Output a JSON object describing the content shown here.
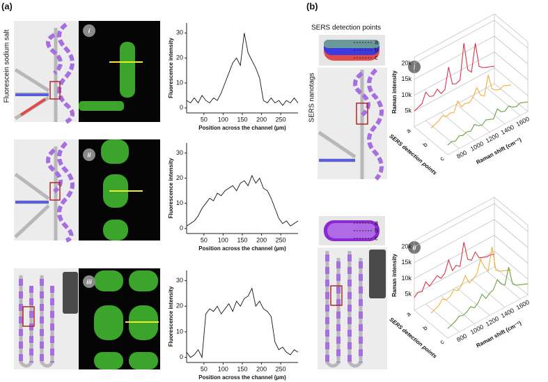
{
  "panels": {
    "a": "(a)",
    "b": "(b)"
  },
  "schematic": {
    "fluorescein": "Fluorescein sodium salt",
    "sers_title": "SERS detection points",
    "nanotags": "SERS nanotags",
    "points": [
      "a",
      "b",
      "c"
    ],
    "badges": [
      "i",
      "ii",
      "iii"
    ]
  },
  "chart_data": [
    {
      "type": "line",
      "xlabel": "Position across the channel (µm)",
      "ylabel": "Fluorescence intensity",
      "color": "#111111",
      "x": [
        5,
        15,
        25,
        35,
        45,
        55,
        65,
        75,
        85,
        95,
        105,
        115,
        125,
        135,
        145,
        155,
        165,
        175,
        185,
        195,
        205,
        215,
        225,
        235,
        245,
        255,
        265,
        275,
        285,
        295
      ],
      "values": [
        3,
        2,
        4,
        2,
        5,
        3,
        2,
        4,
        3,
        6,
        10,
        14,
        18,
        20,
        17,
        30,
        22,
        19,
        16,
        12,
        3,
        2,
        4,
        2,
        3,
        1,
        3,
        2,
        4,
        2
      ],
      "xlim": [
        5,
        295
      ],
      "ylim": [
        -2,
        34
      ],
      "xticks": [
        50,
        100,
        150,
        200,
        250
      ],
      "yticks": [
        0,
        10,
        20,
        30
      ]
    },
    {
      "type": "line",
      "xlabel": "Position across the channel (µm)",
      "ylabel": "Fluorescence intensity",
      "color": "#111111",
      "x": [
        5,
        15,
        25,
        35,
        45,
        55,
        65,
        75,
        85,
        95,
        105,
        115,
        125,
        135,
        145,
        155,
        165,
        175,
        185,
        195,
        205,
        215,
        225,
        235,
        245,
        255,
        265,
        275,
        285,
        295
      ],
      "values": [
        1,
        2,
        3,
        5,
        8,
        10,
        12,
        11,
        14,
        13,
        15,
        16,
        17,
        15,
        18,
        19,
        17,
        21,
        18,
        20,
        16,
        15,
        12,
        8,
        4,
        2,
        3,
        1,
        2,
        3
      ],
      "xlim": [
        5,
        295
      ],
      "ylim": [
        -2,
        34
      ],
      "xticks": [
        50,
        100,
        150,
        200,
        250
      ],
      "yticks": [
        0,
        10,
        20,
        30
      ]
    },
    {
      "type": "line",
      "xlabel": "Position across the channel (µm)",
      "ylabel": "Fluorescence intensity",
      "color": "#111111",
      "x": [
        5,
        15,
        25,
        35,
        45,
        55,
        65,
        75,
        85,
        95,
        105,
        115,
        125,
        135,
        145,
        155,
        165,
        175,
        185,
        195,
        205,
        215,
        225,
        235,
        245,
        255,
        265,
        275,
        285,
        295
      ],
      "values": [
        2,
        0,
        1,
        3,
        0,
        17,
        19,
        18,
        20,
        17,
        19,
        21,
        18,
        22,
        20,
        23,
        24,
        27,
        20,
        22,
        19,
        18,
        16,
        6,
        3,
        4,
        2,
        1,
        3,
        2
      ],
      "xlim": [
        5,
        295
      ],
      "ylim": [
        -2,
        34
      ],
      "xticks": [
        50,
        100,
        150,
        200,
        250
      ],
      "yticks": [
        0,
        10,
        20,
        30
      ]
    },
    {
      "type": "waterfall3d",
      "xlabel": "Raman shift (cm⁻¹)",
      "ylabel": "Raman intensity",
      "depth_label": "SERS detection points",
      "depth_categories": [
        "a",
        "b",
        "c"
      ],
      "x": [
        650,
        700,
        750,
        800,
        850,
        900,
        950,
        1000,
        1050,
        1100,
        1150,
        1200,
        1250,
        1300,
        1350,
        1400,
        1450,
        1500,
        1550,
        1600,
        1650,
        1700
      ],
      "series": [
        {
          "color": "#e0203a",
          "values": [
            5000,
            5500,
            6000,
            9000,
            7000,
            6500,
            8000,
            6000,
            6500,
            13000,
            7000,
            6500,
            7000,
            18000,
            9000,
            7500,
            16000,
            8000,
            7000,
            6500,
            6000,
            5500
          ]
        },
        {
          "color": "#f2a81d",
          "values": [
            4000,
            4500,
            5000,
            6000,
            5000,
            5500,
            5000,
            8000,
            5500,
            6000,
            5500,
            6500,
            9000,
            6000,
            5000,
            11000,
            6000,
            5000,
            4500,
            5000,
            4500,
            4000
          ]
        },
        {
          "color": "#5a9a2a",
          "values": [
            3000,
            3500,
            3000,
            4000,
            3500,
            4000,
            3500,
            5000,
            4000,
            3500,
            4500,
            4000,
            3500,
            6000,
            4500,
            4000,
            5000,
            4000,
            3500,
            4000,
            3500,
            3000
          ]
        }
      ],
      "xlim": [
        650,
        1700
      ],
      "ylim": [
        0,
        22000
      ],
      "xticks": [
        800,
        1000,
        1200,
        1400,
        1600
      ],
      "yticks": [
        {
          "value": 5000,
          "label": "5k"
        },
        {
          "value": 10000,
          "label": "10k"
        },
        {
          "value": 15000,
          "label": "15k"
        },
        {
          "value": 20000,
          "label": "20k"
        }
      ]
    },
    {
      "type": "waterfall3d",
      "xlabel": "Raman shift (cm⁻¹)",
      "ylabel": "Raman intensity",
      "depth_label": "SERS detection points",
      "depth_categories": [
        "a",
        "b",
        "c"
      ],
      "x": [
        650,
        700,
        750,
        800,
        850,
        900,
        950,
        1000,
        1050,
        1100,
        1150,
        1200,
        1250,
        1300,
        1350,
        1400,
        1450,
        1500,
        1550,
        1600,
        1650,
        1700
      ],
      "series": [
        {
          "color": "#e0203a",
          "values": [
            4000,
            5000,
            4500,
            7000,
            5000,
            6000,
            7000,
            5500,
            6500,
            10000,
            6000,
            7000,
            6000,
            13000,
            7000,
            6000,
            8000,
            5500,
            5000,
            4500,
            4500,
            4000
          ]
        },
        {
          "color": "#f2a81d",
          "values": [
            3500,
            4000,
            4500,
            6000,
            5000,
            5500,
            7000,
            6000,
            7000,
            9500,
            6500,
            7000,
            8000,
            12000,
            9000,
            7000,
            14000,
            6000,
            5000,
            4500,
            4000,
            3500
          ]
        },
        {
          "color": "#5a9a2a",
          "values": [
            3000,
            3500,
            4000,
            5000,
            4500,
            5000,
            6000,
            5000,
            6000,
            8000,
            6000,
            7000,
            7500,
            10000,
            8000,
            7000,
            12000,
            6000,
            5000,
            4500,
            4000,
            3500
          ]
        }
      ],
      "xlim": [
        650,
        1700
      ],
      "ylim": [
        0,
        22000
      ],
      "xticks": [
        800,
        1000,
        1200,
        1400,
        1600
      ],
      "yticks": [
        {
          "value": 5000,
          "label": "5k"
        },
        {
          "value": 10000,
          "label": "10k"
        },
        {
          "value": 15000,
          "label": "15k"
        },
        {
          "value": 20000,
          "label": "20k"
        }
      ]
    }
  ]
}
